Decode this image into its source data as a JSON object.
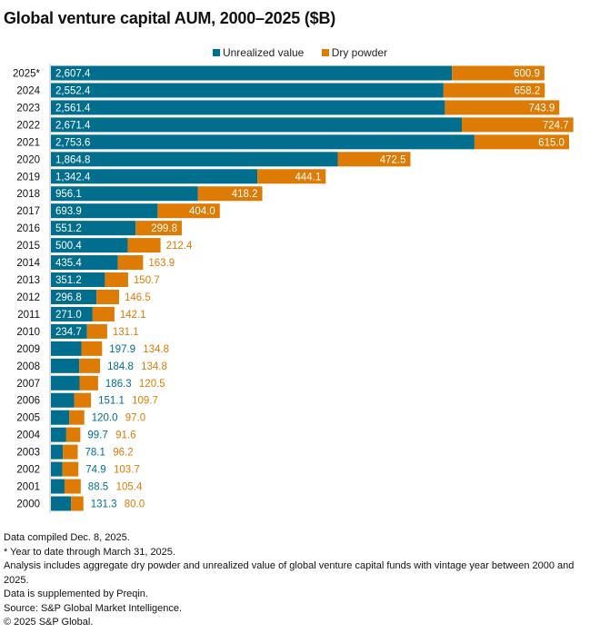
{
  "chart_data": {
    "type": "bar",
    "orientation": "horizontal",
    "stacked": true,
    "title": "Global venture capital AUM, 2000–2025 ($B)",
    "xlabel": "",
    "ylabel": "",
    "xlim": [
      0,
      3500
    ],
    "grid": false,
    "legend_position": "top-center",
    "categories": [
      "2025*",
      "2024",
      "2023",
      "2022",
      "2021",
      "2020",
      "2019",
      "2018",
      "2017",
      "2016",
      "2015",
      "2014",
      "2013",
      "2012",
      "2011",
      "2010",
      "2009",
      "2008",
      "2007",
      "2006",
      "2005",
      "2004",
      "2003",
      "2002",
      "2001",
      "2000"
    ],
    "series": [
      {
        "name": "Unrealized value",
        "color": "#006e8c",
        "values": [
          2607.4,
          2552.4,
          2561.4,
          2671.4,
          2753.6,
          1864.8,
          1342.4,
          956.1,
          693.9,
          551.2,
          500.4,
          435.4,
          351.2,
          296.8,
          271.0,
          234.7,
          197.9,
          184.8,
          186.3,
          151.1,
          120.0,
          99.7,
          78.1,
          74.9,
          88.5,
          131.3
        ],
        "labels": [
          "2,607.4",
          "2,552.4",
          "2,561.4",
          "2,671.4",
          "2,753.6",
          "1,864.8",
          "1,342.4",
          "956.1",
          "693.9",
          "551.2",
          "500.4",
          "435.4",
          "351.2",
          "296.8",
          "271.0",
          "234.7",
          "197.9",
          "184.8",
          "186.3",
          "151.1",
          "120.0",
          "99.7",
          "78.1",
          "74.9",
          "88.5",
          "131.3"
        ]
      },
      {
        "name": "Dry powder",
        "color": "#dd7b05",
        "values": [
          600.9,
          658.2,
          743.9,
          724.7,
          615.0,
          472.5,
          444.1,
          418.2,
          404.0,
          299.8,
          212.4,
          163.9,
          150.7,
          146.5,
          142.1,
          131.1,
          134.8,
          134.8,
          120.5,
          109.7,
          97.0,
          91.6,
          96.2,
          103.7,
          105.4,
          80.0
        ],
        "labels": [
          "600.9",
          "658.2",
          "743.9",
          "724.7",
          "615.0",
          "472.5",
          "444.1",
          "418.2",
          "404.0",
          "299.8",
          "212.4",
          "163.9",
          "150.7",
          "146.5",
          "142.1",
          "131.1",
          "134.8",
          "134.8",
          "120.5",
          "109.7",
          "97.0",
          "91.6",
          "96.2",
          "103.7",
          "105.4",
          "80.0"
        ]
      }
    ]
  },
  "legend": {
    "items": [
      {
        "label": "Unrealized value",
        "color": "#006e8c"
      },
      {
        "label": "Dry powder",
        "color": "#dd7b05"
      }
    ]
  },
  "footer": {
    "lines": [
      "Data compiled Dec. 8, 2025.",
      "* Year to date through March 31, 2025.",
      "Analysis includes aggregate dry powder and unrealized value of global venture capital funds with vintage year between 2000 and 2025.",
      "Data is supplemented by Preqin.",
      "Source: S&P Global Market Intelligence.",
      "© 2025 S&P Global."
    ]
  }
}
